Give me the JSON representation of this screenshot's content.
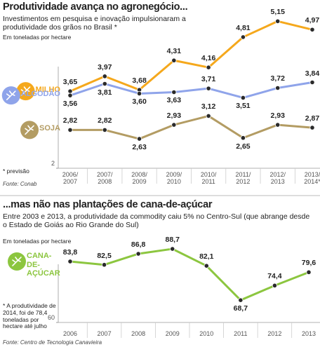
{
  "chart_data": [
    {
      "type": "line",
      "title": "Produtividade avança no agronegócio...",
      "subtitle": "Investimentos em pesquisa e inovação impulsionaram a produtividade dos grãos no Brasil *",
      "unit_label": "Em toneladas por hectare",
      "categories": [
        "2006/ 2007",
        "2007/ 2008",
        "2008/ 2009",
        "2009/ 2010",
        "2010/ 2011",
        "2011/ 2012",
        "2012/ 2013",
        "2013/ 2014*"
      ],
      "series": [
        {
          "name": "MILHO",
          "color": "#f5a81c",
          "values": [
            3.65,
            3.97,
            3.68,
            4.31,
            4.16,
            4.81,
            5.15,
            4.97
          ],
          "value_labels": [
            "3,65",
            "3,97",
            "3,68",
            "4,31",
            "4,16",
            "4,81",
            "5,15",
            "4,97"
          ]
        },
        {
          "name": "ALGODÃO",
          "color": "#8fa4ea",
          "values": [
            3.56,
            3.81,
            3.6,
            3.63,
            3.71,
            3.51,
            3.72,
            3.84
          ],
          "value_labels": [
            "3,56",
            "3,81",
            "3,60",
            "3,63",
            "3,71",
            "3,51",
            "3,72",
            "3,84"
          ]
        },
        {
          "name": "SOJA",
          "color": "#b39c63",
          "values": [
            2.82,
            2.82,
            2.63,
            2.93,
            3.12,
            2.65,
            2.93,
            2.87
          ],
          "value_labels": [
            "2,82",
            "2,82",
            "2,63",
            "2,93",
            "3,12",
            "2,65",
            "2,93",
            "2,87"
          ]
        }
      ],
      "ylim": [
        2,
        5.5
      ],
      "yticks": [
        2
      ],
      "note": "* previsão",
      "source": "Fonte: Conab"
    },
    {
      "type": "line",
      "title": "...mas não nas plantações de cana-de-açúcar",
      "subtitle": "Entre 2003 e 2013, a produtividade da commodity caiu 5% no Centro-Sul (que abrange desde o Estado de Goiás ao Rio Grande do Sul)",
      "unit_label": "Em toneladas por hectare",
      "categories": [
        "2006",
        "2007",
        "2008",
        "2009",
        "2010",
        "2011",
        "2012",
        "2013"
      ],
      "series": [
        {
          "name": "CANA-DE-AÇÚCAR",
          "color": "#8cc63f",
          "values": [
            83.8,
            82.5,
            86.8,
            88.7,
            82.1,
            68.7,
            74.4,
            79.6
          ],
          "value_labels": [
            "83,8",
            "82,5",
            "86,8",
            "88,7",
            "82,1",
            "68,7",
            "74,4",
            "79,6"
          ]
        }
      ],
      "ylim": [
        60,
        92
      ],
      "yticks": [
        60
      ],
      "note": "* A produtividade de 2014, foi de 78,4 toneladas por hectare até julho",
      "source": "Fonte: Centro de Tecnologia Canavieira"
    }
  ]
}
